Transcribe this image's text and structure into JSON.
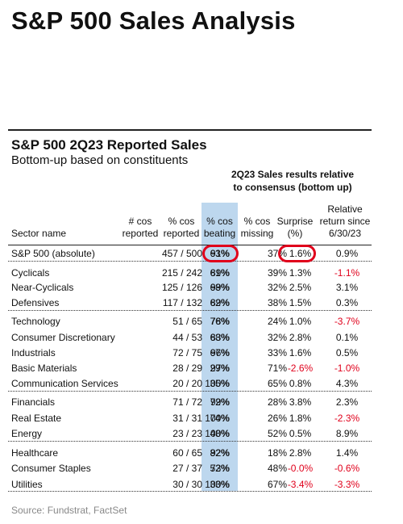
{
  "page_title": "S&P 500 Sales Analysis",
  "table": {
    "title": "S&P 500 2Q23 Reported Sales",
    "subtitle": "Bottom-up based on constituents",
    "group_header_line1": "2Q23 Sales results relative",
    "group_header_line2": "to consensus (bottom up)",
    "highlight_color": "#bdd7ee",
    "negative_color": "#e0001b",
    "columns": {
      "sector": [
        "",
        "",
        "Sector name"
      ],
      "reported": [
        "",
        "# cos",
        "reported"
      ],
      "pct_reported": [
        "",
        "% cos",
        "reported"
      ],
      "beating": [
        "",
        "% cos",
        "beating"
      ],
      "missing": [
        "",
        "% cos",
        "missing"
      ],
      "surprise": [
        "",
        "Surprise",
        "(%)"
      ],
      "relative": [
        "Relative",
        "return since",
        "6/30/23"
      ]
    },
    "rows": [
      {
        "name": "S&P 500 (absolute)",
        "reported": "457 / 500",
        "pct_reported": "91%",
        "beating": "63%",
        "missing": "37%",
        "surprise": "1.6%",
        "relative": "0.9%",
        "surprise_neg": false,
        "relative_neg": false
      },
      {
        "name": "Cyclicals",
        "reported": "215 / 242",
        "pct_reported": "89%",
        "beating": "61%",
        "missing": "39%",
        "surprise": "1.3%",
        "relative": "-1.1%",
        "surprise_neg": false,
        "relative_neg": true
      },
      {
        "name": "Near-Cyclicals",
        "reported": "125 / 126",
        "pct_reported": "99%",
        "beating": "68%",
        "missing": "32%",
        "surprise": "2.5%",
        "relative": "3.1%",
        "surprise_neg": false,
        "relative_neg": false
      },
      {
        "name": "Defensives",
        "reported": "117 / 132",
        "pct_reported": "89%",
        "beating": "62%",
        "missing": "38%",
        "surprise": "1.5%",
        "relative": "0.3%",
        "surprise_neg": false,
        "relative_neg": false
      },
      {
        "name": "Technology",
        "reported": "51 / 65",
        "pct_reported": "78%",
        "beating": "76%",
        "missing": "24%",
        "surprise": "1.0%",
        "relative": "-3.7%",
        "surprise_neg": false,
        "relative_neg": true
      },
      {
        "name": "Consumer Discretionary",
        "reported": "44 / 53",
        "pct_reported": "83%",
        "beating": "68%",
        "missing": "32%",
        "surprise": "2.8%",
        "relative": "0.1%",
        "surprise_neg": false,
        "relative_neg": false
      },
      {
        "name": "Industrials",
        "reported": "72 / 75",
        "pct_reported": "96%",
        "beating": "67%",
        "missing": "33%",
        "surprise": "1.6%",
        "relative": "0.5%",
        "surprise_neg": false,
        "relative_neg": false
      },
      {
        "name": "Basic Materials",
        "reported": "28 / 29",
        "pct_reported": "97%",
        "beating": "29%",
        "missing": "71%",
        "surprise": "-2.6%",
        "relative": "-1.0%",
        "surprise_neg": true,
        "relative_neg": true
      },
      {
        "name": "Communication Services",
        "reported": "20 / 20",
        "pct_reported": "100%",
        "beating": "35%",
        "missing": "65%",
        "surprise": "0.8%",
        "relative": "4.3%",
        "surprise_neg": false,
        "relative_neg": false
      },
      {
        "name": "Financials",
        "reported": "71 / 72",
        "pct_reported": "99%",
        "beating": "72%",
        "missing": "28%",
        "surprise": "3.8%",
        "relative": "2.3%",
        "surprise_neg": false,
        "relative_neg": false
      },
      {
        "name": "Real Estate",
        "reported": "31 / 31",
        "pct_reported": "100%",
        "beating": "74%",
        "missing": "26%",
        "surprise": "1.8%",
        "relative": "-2.3%",
        "surprise_neg": false,
        "relative_neg": true
      },
      {
        "name": "Energy",
        "reported": "23 / 23",
        "pct_reported": "100%",
        "beating": "48%",
        "missing": "52%",
        "surprise": "0.5%",
        "relative": "8.9%",
        "surprise_neg": false,
        "relative_neg": false
      },
      {
        "name": "Healthcare",
        "reported": "60 / 65",
        "pct_reported": "92%",
        "beating": "82%",
        "missing": "18%",
        "surprise": "2.8%",
        "relative": "1.4%",
        "surprise_neg": false,
        "relative_neg": false
      },
      {
        "name": "Consumer Staples",
        "reported": "27 / 37",
        "pct_reported": "73%",
        "beating": "52%",
        "missing": "48%",
        "surprise": "-0.0%",
        "relative": "-0.6%",
        "surprise_neg": true,
        "relative_neg": true
      },
      {
        "name": "Utilities",
        "reported": "30 / 30",
        "pct_reported": "100%",
        "beating": "33%",
        "missing": "67%",
        "surprise": "-3.4%",
        "relative": "-3.3%",
        "surprise_neg": true,
        "relative_neg": true
      }
    ]
  },
  "source": "Source: Fundstrat, FactSet"
}
